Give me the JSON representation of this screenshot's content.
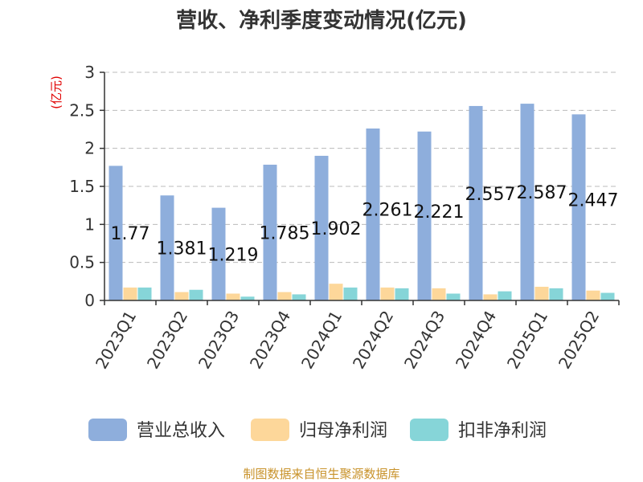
{
  "chart_data": {
    "type": "bar",
    "title": "营收、净利季度变动情况(亿元)",
    "unit_label": "(亿元)",
    "categories": [
      "2023Q1",
      "2023Q2",
      "2023Q3",
      "2023Q4",
      "2024Q1",
      "2024Q2",
      "2024Q3",
      "2024Q4",
      "2025Q1",
      "2025Q2"
    ],
    "series": [
      {
        "name": "营业总收入",
        "color": "#8eaedc",
        "values": [
          1.77,
          1.381,
          1.219,
          1.785,
          1.902,
          2.261,
          2.221,
          2.557,
          2.587,
          2.447
        ],
        "data_labels": [
          "1.77",
          "1.381",
          "1.219",
          "1.785",
          "1.902",
          "2.261",
          "2.221",
          "2.557",
          "2.587",
          "2.447"
        ]
      },
      {
        "name": "归母净利润",
        "color": "#fdd79a",
        "values": [
          0.17,
          0.11,
          0.09,
          0.11,
          0.22,
          0.17,
          0.16,
          0.08,
          0.18,
          0.13
        ]
      },
      {
        "name": "扣非净利润",
        "color": "#86d5d8",
        "values": [
          0.17,
          0.14,
          0.05,
          0.08,
          0.17,
          0.16,
          0.09,
          0.12,
          0.16,
          0.1
        ]
      }
    ],
    "y_ticks": [
      "0",
      "0.5",
      "1",
      "1.5",
      "2",
      "2.5",
      "3"
    ],
    "ylim": [
      0,
      3
    ],
    "grid": true,
    "grid_style": "dashed",
    "legend_position": "bottom",
    "source": "制图数据来自恒生聚源数据库"
  }
}
